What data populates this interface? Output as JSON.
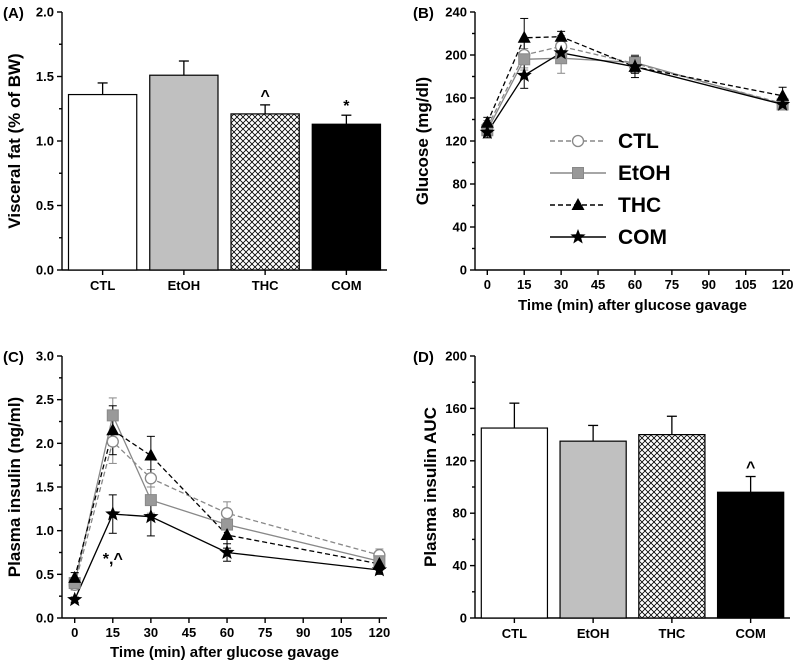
{
  "legend": [
    {
      "name": "CTL",
      "marker": "circle",
      "dash": "dashed",
      "color": "#888888"
    },
    {
      "name": "EtOH",
      "marker": "square",
      "dash": "solid",
      "color": "#888888"
    },
    {
      "name": "THC",
      "marker": "triangle",
      "dash": "dashed",
      "color": "#000000"
    },
    {
      "name": "COM",
      "marker": "star",
      "dash": "solid",
      "color": "#000000"
    }
  ],
  "chart_data": [
    {
      "id": "A",
      "type": "bar",
      "title": "(A)",
      "ylabel": "Visceral fat (% of BW)",
      "xlabel": "",
      "ylim": [
        0,
        2.0
      ],
      "yticks": [
        "0.0",
        "0.5",
        "1.0",
        "1.5",
        "2.0"
      ],
      "categories": [
        "CTL",
        "EtOH",
        "THC",
        "COM"
      ],
      "values": [
        1.36,
        1.51,
        1.21,
        1.13
      ],
      "errors": [
        0.09,
        0.11,
        0.07,
        0.07
      ],
      "fills": [
        "white",
        "#c0c0c0",
        "hatch",
        "black"
      ],
      "annotations": [
        "",
        "",
        "^",
        "*"
      ]
    },
    {
      "id": "B",
      "type": "line",
      "title": "(B)",
      "ylabel": "Glucose (mg/dl)",
      "xlabel": "Time (min) after glucose gavage",
      "ylim": [
        0,
        240
      ],
      "xlim": [
        -5,
        123
      ],
      "xticks": [
        "0",
        "15",
        "30",
        "45",
        "60",
        "75",
        "90",
        "105",
        "120"
      ],
      "yticks": [
        "0",
        "40",
        "80",
        "120",
        "160",
        "200",
        "240"
      ],
      "x": [
        0,
        15,
        30,
        60,
        120
      ],
      "series": [
        {
          "name": "CTL",
          "values": [
            133,
            200,
            208,
            192,
            155
          ],
          "errors": [
            6,
            12,
            10,
            8,
            5
          ]
        },
        {
          "name": "EtOH",
          "values": [
            130,
            196,
            197,
            193,
            154
          ],
          "errors": [
            7,
            10,
            14,
            6,
            5
          ]
        },
        {
          "name": "THC",
          "values": [
            137,
            216,
            217,
            189,
            162
          ],
          "errors": [
            5,
            18,
            5,
            10,
            8
          ]
        },
        {
          "name": "COM",
          "values": [
            128,
            181,
            202,
            189,
            154
          ],
          "errors": [
            5,
            12,
            8,
            6,
            5
          ]
        }
      ]
    },
    {
      "id": "C",
      "type": "line",
      "title": "(C)",
      "ylabel": "Plasma insulin (ng/ml)",
      "xlabel": "Time (min) after glucose gavage",
      "ylim": [
        0,
        3.0
      ],
      "xlim": [
        -5,
        123
      ],
      "xticks": [
        "0",
        "15",
        "30",
        "45",
        "60",
        "75",
        "90",
        "105",
        "120"
      ],
      "yticks": [
        "0.0",
        "0.5",
        "1.0",
        "1.5",
        "2.0",
        "2.5",
        "3.0"
      ],
      "x": [
        0,
        15,
        30,
        60,
        120
      ],
      "series": [
        {
          "name": "CTL",
          "values": [
            0.38,
            2.02,
            1.6,
            1.2,
            0.72
          ],
          "errors": [
            0.06,
            0.25,
            0.1,
            0.13,
            0.07
          ]
        },
        {
          "name": "EtOH",
          "values": [
            0.4,
            2.32,
            1.35,
            1.07,
            0.65
          ],
          "errors": [
            0.06,
            0.2,
            0.15,
            0.12,
            0.07
          ]
        },
        {
          "name": "THC",
          "values": [
            0.46,
            2.15,
            1.86,
            0.95,
            0.62
          ],
          "errors": [
            0.06,
            0.28,
            0.22,
            0.15,
            0.05
          ]
        },
        {
          "name": "COM",
          "values": [
            0.21,
            1.19,
            1.16,
            0.75,
            0.55
          ],
          "errors": [
            0.03,
            0.22,
            0.22,
            0.1,
            0.05
          ]
        }
      ],
      "annotations": [
        {
          "x": 15,
          "y": 0.62,
          "text": "*,^"
        }
      ]
    },
    {
      "id": "D",
      "type": "bar",
      "title": "(D)",
      "ylabel": "Plasma insulin AUC",
      "xlabel": "",
      "ylim": [
        0,
        200
      ],
      "yticks": [
        "0",
        "40",
        "80",
        "120",
        "160",
        "200"
      ],
      "categories": [
        "CTL",
        "EtOH",
        "THC",
        "COM"
      ],
      "values": [
        145,
        135,
        140,
        96
      ],
      "errors": [
        19,
        12,
        14,
        12
      ],
      "fills": [
        "white",
        "#c0c0c0",
        "hatch",
        "black"
      ],
      "annotations": [
        "",
        "",
        "",
        "^"
      ]
    }
  ]
}
